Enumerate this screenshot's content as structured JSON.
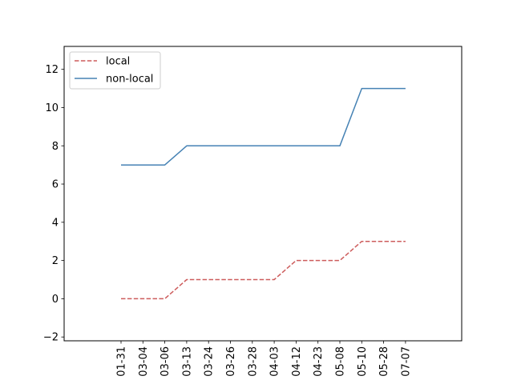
{
  "chart_data": {
    "type": "line",
    "categories": [
      "01-31",
      "03-04",
      "03-06",
      "03-13",
      "03-24",
      "03-26",
      "03-28",
      "04-03",
      "04-12",
      "04-23",
      "05-08",
      "05-10",
      "05-28",
      "07-07"
    ],
    "series": [
      {
        "name": "local",
        "values": [
          0,
          0,
          0,
          1,
          1,
          1,
          1,
          1,
          2,
          2,
          2,
          3,
          3,
          3
        ],
        "color": "#cd5c5c",
        "style": "dashed"
      },
      {
        "name": "non-local",
        "values": [
          7,
          7,
          7,
          8,
          8,
          8,
          8,
          8,
          8,
          8,
          8,
          11,
          11,
          11
        ],
        "color": "#4682b4",
        "style": "solid"
      }
    ],
    "ylim": [
      -2.2,
      13.2
    ],
    "yticks": [
      -2,
      0,
      2,
      4,
      6,
      8,
      10,
      12
    ],
    "ytick_labels": [
      "−2",
      "0",
      "2",
      "4",
      "6",
      "8",
      "10",
      "12"
    ],
    "legend_position": "upper-left",
    "grid": false
  }
}
